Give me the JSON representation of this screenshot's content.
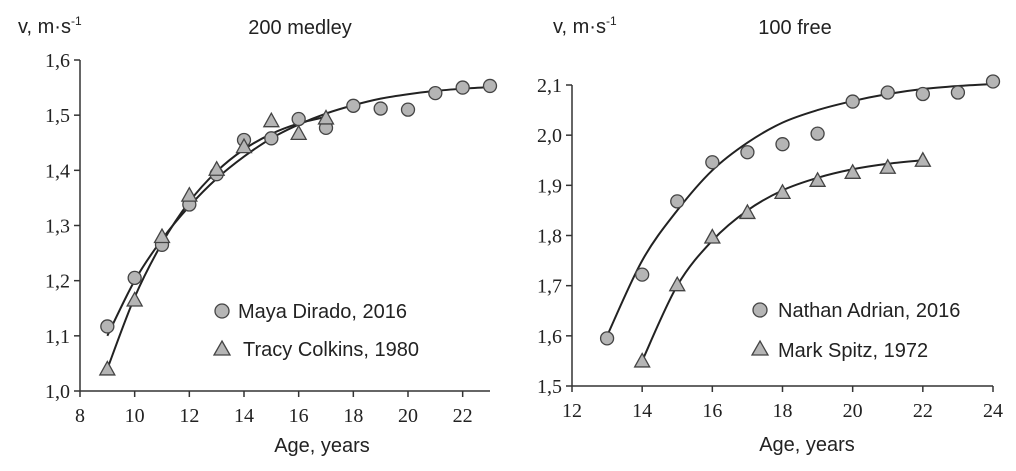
{
  "colors": {
    "marker_fill": "#b5b5b5",
    "marker_stroke": "#444444",
    "line": "#222222",
    "axis": "#333333"
  },
  "chart_data": [
    {
      "type": "scatter",
      "title": "200 medley",
      "ylabel": "v, m·s",
      "ylabel_sup": "-1",
      "xlabel": "Age, years",
      "xlim": [
        8,
        23
      ],
      "ylim": [
        1.0,
        1.6
      ],
      "xticks": [
        "8",
        "10",
        "12",
        "14",
        "16",
        "18",
        "20",
        "22"
      ],
      "xtick_values": [
        8,
        10,
        12,
        14,
        16,
        18,
        20,
        22
      ],
      "yticks": [
        "1,0",
        "1,1",
        "1,2",
        "1,3",
        "1,4",
        "1,5",
        "1,6"
      ],
      "ytick_values": [
        1.0,
        1.1,
        1.2,
        1.3,
        1.4,
        1.5,
        1.6
      ],
      "series": [
        {
          "name": "Maya Dirado, 2016",
          "marker": "circle",
          "x": [
            9,
            10,
            11,
            12,
            13,
            14,
            15,
            16,
            17,
            18,
            19,
            20,
            21,
            22,
            23
          ],
          "y": [
            1.117,
            1.205,
            1.265,
            1.338,
            1.393,
            1.455,
            1.458,
            1.493,
            1.477,
            1.517,
            1.512,
            1.51,
            1.54,
            1.55,
            1.553
          ],
          "fit": {
            "x": [
              9,
              10,
              11,
              12,
              13,
              14,
              15,
              16,
              17,
              18,
              19,
              20,
              21,
              22,
              23
            ],
            "y": [
              1.1,
              1.2,
              1.275,
              1.335,
              1.385,
              1.425,
              1.458,
              1.483,
              1.503,
              1.518,
              1.53,
              1.538,
              1.544,
              1.548,
              1.551
            ]
          }
        },
        {
          "name": "Tracy Colkins, 1980",
          "marker": "triangle",
          "x": [
            9,
            10,
            11,
            12,
            13,
            14,
            15,
            16,
            17
          ],
          "y": [
            1.04,
            1.165,
            1.28,
            1.355,
            1.402,
            1.443,
            1.49,
            1.467,
            1.495
          ],
          "fit": {
            "x": [
              9,
              10,
              11,
              12,
              13,
              14,
              15,
              16,
              17
            ],
            "y": [
              1.04,
              1.17,
              1.268,
              1.343,
              1.398,
              1.438,
              1.466,
              1.485,
              1.497
            ]
          }
        }
      ],
      "legend_position": "bottom-right"
    },
    {
      "type": "scatter",
      "title": "100 free",
      "ylabel": "v, m·s",
      "ylabel_sup": "-1",
      "xlabel": "Age, years",
      "xlim": [
        12,
        24
      ],
      "ylim": [
        1.5,
        2.1
      ],
      "xticks": [
        "12",
        "14",
        "16",
        "18",
        "20",
        "22",
        "24"
      ],
      "xtick_values": [
        12,
        14,
        16,
        18,
        20,
        22,
        24
      ],
      "yticks": [
        "1,5",
        "1,6",
        "1,7",
        "1,8",
        "1,9",
        "2,0",
        "2,1"
      ],
      "ytick_values": [
        1.5,
        1.6,
        1.7,
        1.8,
        1.9,
        2.0,
        2.1
      ],
      "series": [
        {
          "name": "Nathan Adrian, 2016",
          "marker": "circle",
          "x": [
            13,
            14,
            15,
            16,
            17,
            18,
            19,
            20,
            21,
            22,
            23,
            24
          ],
          "y": [
            1.595,
            1.722,
            1.868,
            1.946,
            1.966,
            1.982,
            2.003,
            2.067,
            2.085,
            2.082,
            2.085,
            2.107
          ],
          "fit": {
            "x": [
              13,
              14,
              15,
              16,
              17,
              18,
              19,
              20,
              21,
              22,
              23,
              24
            ],
            "y": [
              1.6,
              1.75,
              1.85,
              1.93,
              1.985,
              2.025,
              2.05,
              2.068,
              2.082,
              2.092,
              2.098,
              2.102
            ]
          }
        },
        {
          "name": "Mark Spitz, 1972",
          "marker": "triangle",
          "x": [
            14,
            15,
            16,
            17,
            18,
            19,
            20,
            21,
            22
          ],
          "y": [
            1.55,
            1.702,
            1.797,
            1.846,
            1.886,
            1.91,
            1.926,
            1.936,
            1.95
          ],
          "fit": {
            "x": [
              14,
              15,
              16,
              17,
              18,
              19,
              20,
              21,
              22
            ],
            "y": [
              1.55,
              1.7,
              1.79,
              1.85,
              1.89,
              1.915,
              1.932,
              1.943,
              1.95
            ]
          }
        }
      ],
      "legend_position": "bottom-right"
    }
  ]
}
